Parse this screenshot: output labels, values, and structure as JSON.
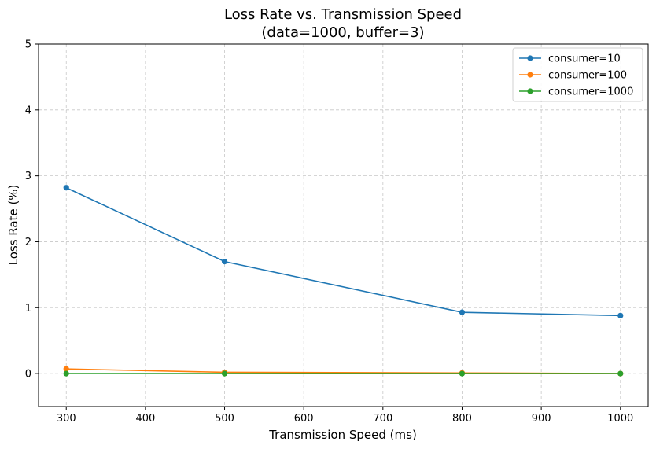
{
  "chart_data": {
    "type": "line",
    "title_line1": "Loss Rate vs. Transmission Speed",
    "title_line2": "(data=1000, buffer=3)",
    "xlabel": "Transmission Speed (ms)",
    "ylabel": "Loss Rate (%)",
    "x": [
      300,
      500,
      800,
      1000
    ],
    "xlim": [
      265,
      1035
    ],
    "ylim": [
      -0.5,
      5
    ],
    "xticks": [
      300,
      400,
      500,
      600,
      700,
      800,
      900,
      1000
    ],
    "yticks": [
      0,
      1,
      2,
      3,
      4,
      5
    ],
    "grid": true,
    "legend_position": "top-right",
    "series": [
      {
        "name": "consumer=10",
        "color": "#1f77b4",
        "values": [
          2.82,
          1.7,
          0.93,
          0.88
        ]
      },
      {
        "name": "consumer=100",
        "color": "#ff7f0e",
        "values": [
          0.07,
          0.02,
          0.01,
          0.0
        ]
      },
      {
        "name": "consumer=1000",
        "color": "#2ca02c",
        "values": [
          0.0,
          0.0,
          0.0,
          0.0
        ]
      }
    ]
  }
}
